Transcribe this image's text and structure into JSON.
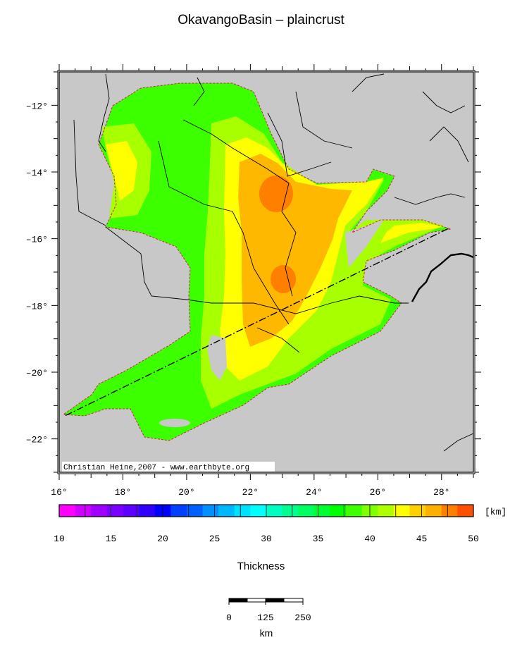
{
  "map": {
    "title": "OkavangoBasin – plaincrust",
    "credit": "Christian Heine,2007 - www.earthbyte.org",
    "lon_range": [
      16,
      29
    ],
    "lat_range": [
      -23,
      -11
    ],
    "lon_ticks": [
      16,
      18,
      20,
      22,
      24,
      26,
      28
    ],
    "lon_tick_labels": [
      "16°",
      "18°",
      "20°",
      "22°",
      "24°",
      "26°",
      "28°"
    ],
    "lat_ticks": [
      -12,
      -14,
      -16,
      -18,
      -20,
      -22
    ],
    "lat_tick_labels": [
      "–12°",
      "–14°",
      "–16°",
      "–18°",
      "–20°",
      "–22°"
    ],
    "profile_line": [
      [
        16.2,
        -21.3
      ],
      [
        28.2,
        -15.7
      ]
    ],
    "colors": {
      "land": "#c8c8c8",
      "boundary": "#d02050",
      "profile": "#000000"
    }
  },
  "colorbar": {
    "title": "Thickness",
    "unit": "[km]",
    "min": 10,
    "max": 50,
    "tick_values": [
      10,
      15,
      20,
      25,
      30,
      35,
      40,
      45,
      50
    ],
    "tick_labels": [
      "10",
      "15",
      "20",
      "25",
      "30",
      "35",
      "40",
      "45",
      "50"
    ],
    "colors": [
      "#ff00ff",
      "#d000ff",
      "#a000ff",
      "#7a00ff",
      "#5c00ff",
      "#3000ff",
      "#0000ff",
      "#0040ff",
      "#0060ff",
      "#0090ff",
      "#00b8ff",
      "#00e0ff",
      "#00ffff",
      "#00ffc0",
      "#00ff90",
      "#00ff60",
      "#00ff30",
      "#00ff00",
      "#40ff00",
      "#80ff00",
      "#b0ff00",
      "#ffff00",
      "#ffd000",
      "#ffb000",
      "#ff8000",
      "#ff5000"
    ]
  },
  "scalebar": {
    "labels": [
      "0",
      "125",
      "250"
    ],
    "unit": "km"
  }
}
